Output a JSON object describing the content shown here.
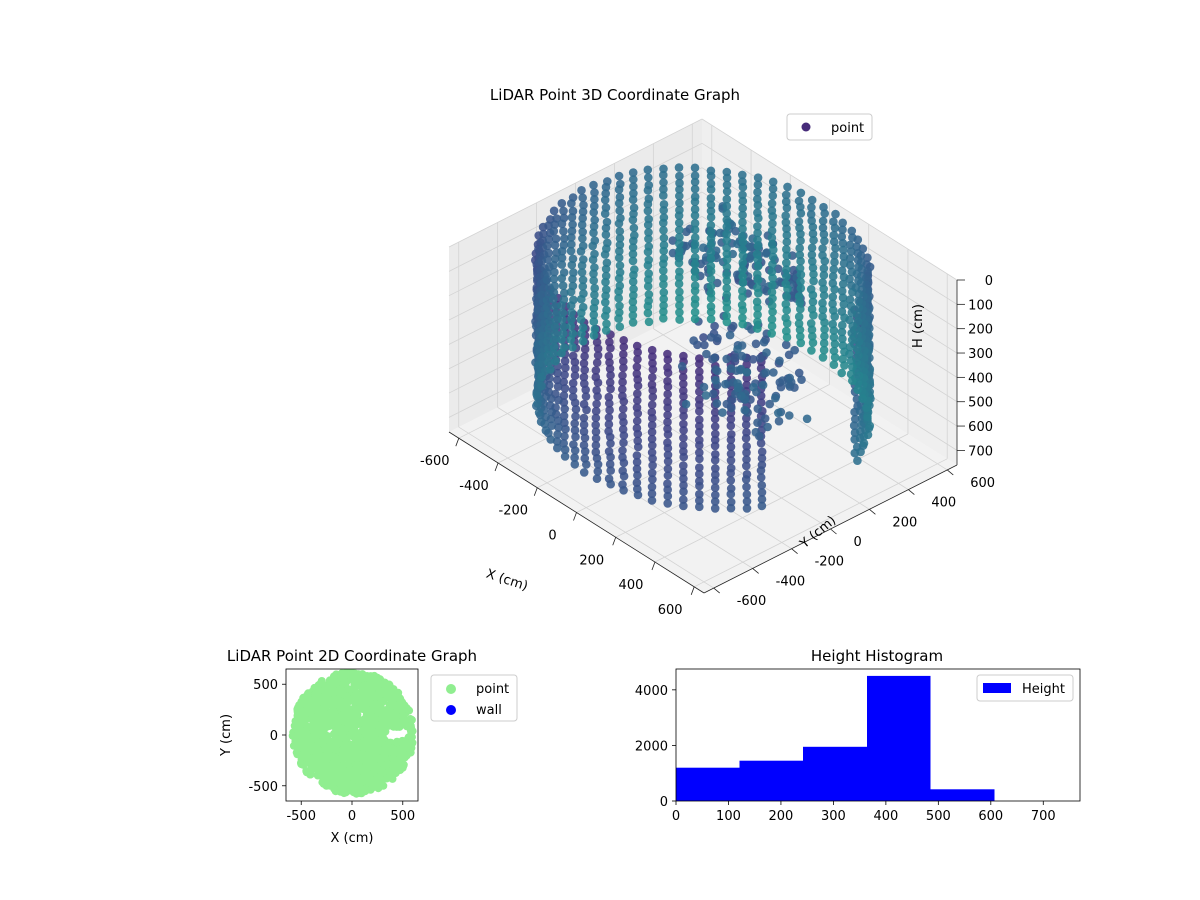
{
  "chart_data": [
    {
      "type": "scatter3d",
      "title": "LiDAR Point 3D Coordinate Graph",
      "xlabel": "X (cm)",
      "ylabel": "Y (cm)",
      "zlabel": "H (cm)",
      "xlim": [
        -650,
        650
      ],
      "ylim": [
        -650,
        650
      ],
      "zlim": [
        0,
        760
      ],
      "z_inverted": true,
      "xticks": [
        -600,
        -400,
        -200,
        0,
        200,
        400,
        600
      ],
      "yticks": [
        -600,
        -400,
        -200,
        0,
        200,
        400,
        600
      ],
      "zticks": [
        0,
        100,
        200,
        300,
        400,
        500,
        600,
        700
      ],
      "grid": true,
      "legend": {
        "entries": [
          "point"
        ],
        "placement": "upper-right"
      },
      "colormap": "viridis",
      "marker_color": "#472c7a",
      "ring": {
        "radius": 600,
        "opening_deg": [
          -20,
          20
        ],
        "h_min": 0,
        "h_max": 630
      },
      "clusters": [
        {
          "center_x": -30,
          "center_y": 190,
          "h": 0,
          "height": 150,
          "spread": 200
        },
        {
          "center_x": 230,
          "center_y": -10,
          "h": 150,
          "height": 350,
          "spread": 190
        },
        {
          "center_x": 250,
          "center_y": 220,
          "h": 0,
          "height": 120,
          "spread": 30
        }
      ]
    },
    {
      "type": "scatter",
      "title": "LiDAR Point 2D Coordinate Graph",
      "xlabel": "X (cm)",
      "ylabel": "Y (cm)",
      "xlim": [
        -650,
        650
      ],
      "ylim": [
        -650,
        650
      ],
      "xticks": [
        -500,
        0,
        500
      ],
      "yticks": [
        -500,
        0,
        500
      ],
      "legend": {
        "entries": [
          "point",
          "wall"
        ],
        "placement": "outside-right"
      },
      "series": [
        {
          "name": "point",
          "color": "#90ee90",
          "region": {
            "radius": 600,
            "center_x": 10,
            "center_y": 20,
            "notch_x": 330,
            "notch_y": 10
          }
        },
        {
          "name": "wall",
          "color": "#0000ff"
        }
      ]
    },
    {
      "type": "bar",
      "title": "Height Histogram",
      "xlim": [
        0,
        770
      ],
      "ylim": [
        0,
        4750
      ],
      "xticks": [
        0,
        100,
        200,
        300,
        400,
        500,
        600,
        700
      ],
      "yticks": [
        0,
        2000,
        4000
      ],
      "bin_edges": [
        0,
        121,
        242,
        364,
        485,
        607
      ],
      "counts": [
        1200,
        1450,
        1950,
        4500,
        420
      ],
      "legend": {
        "entries": [
          "Height"
        ],
        "placement": "upper-right"
      },
      "series": [
        {
          "name": "Height",
          "color": "#0000ff"
        }
      ]
    }
  ]
}
